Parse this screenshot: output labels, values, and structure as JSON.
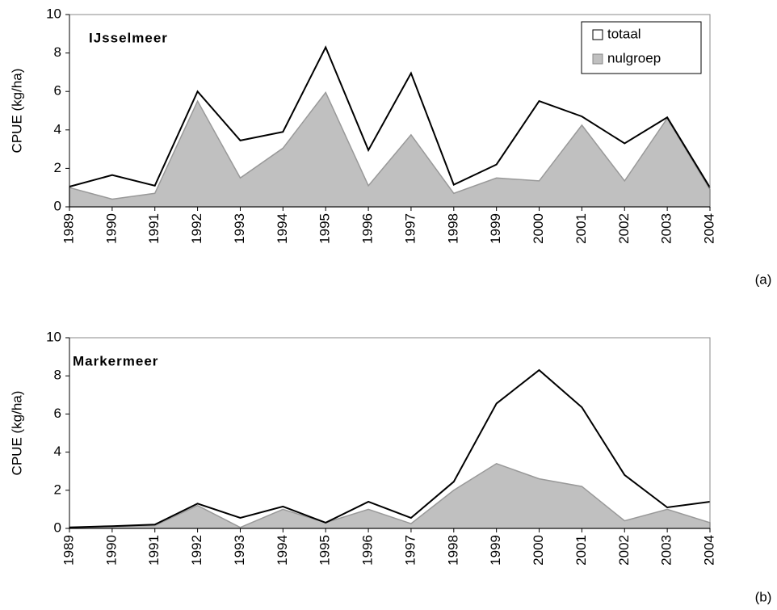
{
  "chart_data": [
    {
      "type": "area",
      "title": "IJsselmeer",
      "ylabel": "CPUE (kg/ha)",
      "label": "(a)",
      "categories": [
        "1989",
        "1990",
        "1991",
        "1992",
        "1993",
        "1994",
        "1995",
        "1996",
        "1997",
        "1998",
        "1999",
        "2000",
        "2001",
        "2002",
        "2003",
        "2004"
      ],
      "series": [
        {
          "name": "totaal",
          "color": "#000000",
          "fill": false,
          "values": [
            1.05,
            1.65,
            1.1,
            6.0,
            3.45,
            3.9,
            8.3,
            2.95,
            6.95,
            1.15,
            2.2,
            5.5,
            4.7,
            3.3,
            4.65,
            1.0
          ]
        },
        {
          "name": "nulgroep",
          "color": "#c0c0c0",
          "fill": true,
          "values": [
            1.0,
            0.4,
            0.7,
            5.5,
            1.5,
            3.05,
            5.95,
            1.1,
            3.75,
            0.7,
            1.5,
            1.35,
            4.25,
            1.35,
            4.6,
            0.9
          ]
        }
      ],
      "ylim": [
        0,
        10
      ],
      "yticks": [
        0,
        2,
        4,
        6,
        8,
        10
      ],
      "legend": "upper right"
    },
    {
      "type": "area",
      "title": "Markermeer",
      "ylabel": "CPUE (kg/ha)",
      "label": "(b)",
      "categories": [
        "1989",
        "1990",
        "1991",
        "1992",
        "1993",
        "1994",
        "1995",
        "1996",
        "1997",
        "1998",
        "1999",
        "2000",
        "2001",
        "2002",
        "2003",
        "2004"
      ],
      "series": [
        {
          "color": "#000000",
          "fill": false,
          "values": [
            0.05,
            0.12,
            0.2,
            1.3,
            0.55,
            1.15,
            0.3,
            1.4,
            0.55,
            2.45,
            6.55,
            8.3,
            6.35,
            2.8,
            1.1,
            1.4
          ]
        },
        {
          "color": "#c0c0c0",
          "fill": true,
          "values": [
            0.05,
            0.1,
            0.15,
            1.2,
            0.05,
            1.0,
            0.3,
            1.0,
            0.25,
            2.0,
            3.4,
            2.6,
            2.2,
            0.4,
            1.0,
            0.3
          ]
        }
      ],
      "ylim": [
        0,
        10
      ],
      "yticks": [
        0,
        2,
        4,
        6,
        8,
        10
      ]
    }
  ]
}
